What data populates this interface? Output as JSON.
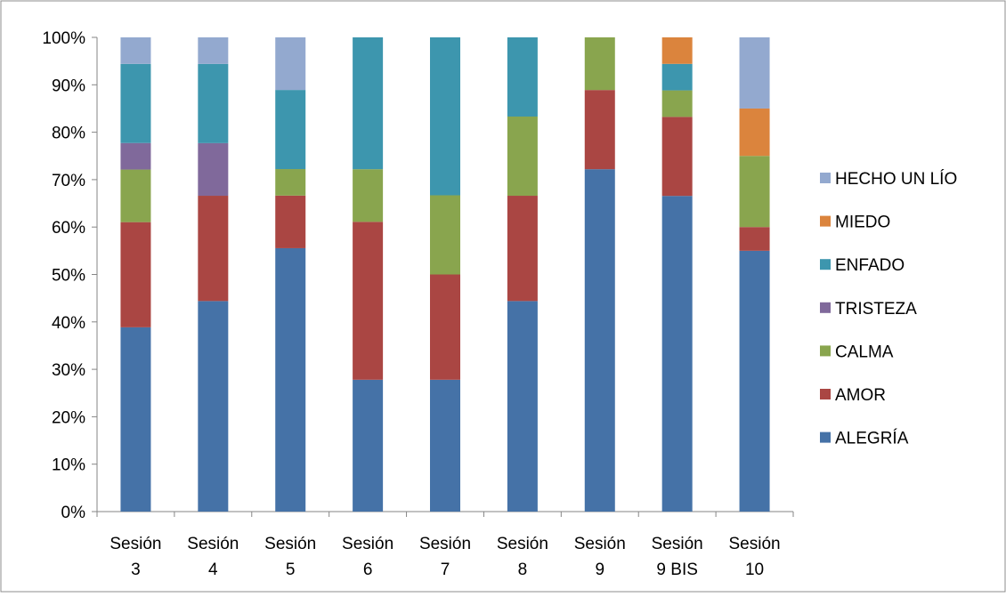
{
  "chart_data": {
    "type": "bar",
    "stacked": true,
    "percent_stacked": true,
    "categories": [
      [
        "Sesión",
        "3"
      ],
      [
        "Sesión",
        "4"
      ],
      [
        "Sesión",
        "5"
      ],
      [
        "Sesión",
        "6"
      ],
      [
        "Sesión",
        "7"
      ],
      [
        "Sesión",
        "8"
      ],
      [
        "Sesión",
        "9"
      ],
      [
        "Sesión",
        "9 BIS"
      ],
      [
        "Sesión",
        "10"
      ]
    ],
    "series": [
      {
        "name": "ALEGRÍA",
        "color": "#4572a7",
        "values": [
          38.9,
          44.4,
          55.6,
          27.8,
          27.8,
          44.4,
          72.2,
          66.7,
          55.0
        ]
      },
      {
        "name": "AMOR",
        "color": "#aa4643",
        "values": [
          22.2,
          22.2,
          11.1,
          33.3,
          22.2,
          22.2,
          16.7,
          16.7,
          5.0
        ]
      },
      {
        "name": "CALMA",
        "color": "#89a54e",
        "values": [
          11.1,
          0,
          5.6,
          11.1,
          16.7,
          16.7,
          11.1,
          5.6,
          15.0
        ]
      },
      {
        "name": "TRISTEZA",
        "color": "#80699b",
        "values": [
          5.6,
          11.1,
          0,
          0,
          0,
          0,
          0,
          0,
          0
        ]
      },
      {
        "name": "ENFADO",
        "color": "#3d96ae",
        "values": [
          16.7,
          16.7,
          16.7,
          27.8,
          33.3,
          16.7,
          0,
          5.6,
          0
        ]
      },
      {
        "name": "MIEDO",
        "color": "#db843d",
        "values": [
          0,
          0,
          0,
          0,
          0,
          0,
          0,
          5.6,
          10.0
        ]
      },
      {
        "name": "HECHO UN LÍO",
        "color": "#93a9cf",
        "values": [
          5.6,
          5.6,
          11.1,
          0,
          0,
          0,
          0,
          0,
          15.0
        ]
      }
    ],
    "yticks": [
      "0%",
      "10%",
      "20%",
      "30%",
      "40%",
      "50%",
      "60%",
      "70%",
      "80%",
      "90%",
      "100%"
    ],
    "ylim": [
      0,
      100
    ],
    "legend_position": "right",
    "legend_order": [
      "HECHO UN LÍO",
      "MIEDO",
      "ENFADO",
      "TRISTEZA",
      "CALMA",
      "AMOR",
      "ALEGRÍA"
    ],
    "grid": false
  }
}
